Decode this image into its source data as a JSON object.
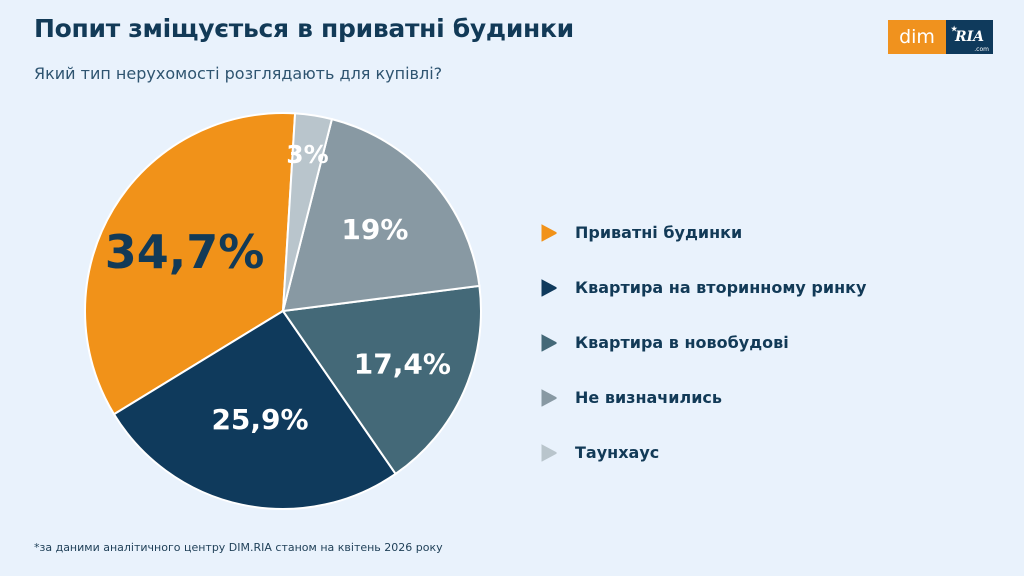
{
  "header": {
    "title": "Попит зміщується в приватні будинки",
    "subtitle": "Який тип нерухомості розглядають для купівлі?"
  },
  "logo": {
    "left_text": "dim",
    "right_text": "RIA",
    "suffix": ".com"
  },
  "footnote": "*за даними аналітичного центру DIM.RIA станом на квітень 2026 року",
  "chart_data": {
    "type": "pie",
    "title": "",
    "slices": [
      {
        "label": "Приватні будинки",
        "value": 34.7,
        "display": "34,7%",
        "color": "#f19219",
        "text_color": "#123a57"
      },
      {
        "label": "Квартира на вторинному ринку",
        "value": 25.9,
        "display": "25,9%",
        "color": "#0f3a5c",
        "text_color": "#ffffff"
      },
      {
        "label": "Квартира в новобудові",
        "value": 17.4,
        "display": "17,4%",
        "color": "#446978",
        "text_color": "#ffffff"
      },
      {
        "label": "Не визначились",
        "value": 19,
        "display": "19%",
        "color": "#8899a3",
        "text_color": "#ffffff"
      },
      {
        "label": "Таунхаус",
        "value": 3,
        "display": "3%",
        "color": "#b9c5cc",
        "text_color": "#ffffff"
      }
    ],
    "legend_position": "right"
  }
}
